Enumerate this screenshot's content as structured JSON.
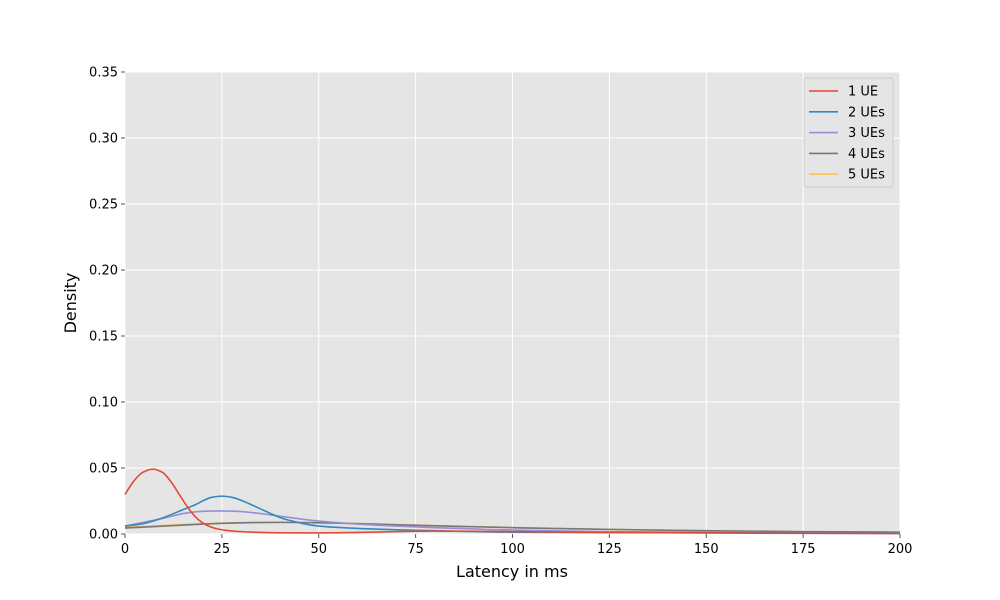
{
  "chart_data": {
    "type": "line",
    "title": "",
    "xlabel": "Latency in ms",
    "ylabel": "Density",
    "xlim": [
      0,
      200
    ],
    "ylim": [
      0,
      0.35
    ],
    "xticks": [
      0,
      25,
      50,
      75,
      100,
      125,
      150,
      175,
      200
    ],
    "xtick_labels": [
      "0",
      "25",
      "50",
      "75",
      "100",
      "125",
      "150",
      "175",
      "200"
    ],
    "yticks": [
      0,
      0.05,
      0.1,
      0.15,
      0.2,
      0.25,
      0.3,
      0.35
    ],
    "ytick_labels": [
      "0.00",
      "0.05",
      "0.10",
      "0.15",
      "0.20",
      "0.25",
      "0.30",
      "0.35"
    ],
    "grid": true,
    "background": "#e5e5e5",
    "legend_position": "top-right",
    "series": [
      {
        "name": "1 UE",
        "color": "#e24a33",
        "x": [
          0,
          2,
          4,
          6,
          7,
          8,
          10,
          12,
          14,
          16,
          18,
          20,
          22,
          24,
          26,
          28,
          30,
          35,
          40,
          50,
          60,
          70,
          80,
          100,
          125,
          150,
          175,
          200
        ],
        "y": [
          0.03,
          0.039,
          0.0455,
          0.0485,
          0.049,
          0.0488,
          0.046,
          0.039,
          0.03,
          0.021,
          0.0135,
          0.0085,
          0.0055,
          0.0038,
          0.0028,
          0.0022,
          0.0018,
          0.0012,
          0.0009,
          0.0008,
          0.0012,
          0.0018,
          0.0022,
          0.0018,
          0.0012,
          0.0008,
          0.0005,
          0.0003
        ]
      },
      {
        "name": "2 UEs",
        "color": "#348abd",
        "x": [
          0,
          5,
          10,
          15,
          18,
          20,
          22,
          24,
          26,
          28,
          30,
          32,
          35,
          40,
          45,
          50,
          60,
          70,
          80,
          90,
          100,
          125,
          150,
          175,
          200
        ],
        "y": [
          0.006,
          0.008,
          0.0125,
          0.0185,
          0.022,
          0.025,
          0.0275,
          0.0285,
          0.0285,
          0.0275,
          0.0255,
          0.023,
          0.019,
          0.0125,
          0.0085,
          0.006,
          0.0042,
          0.0032,
          0.0025,
          0.0018,
          0.0014,
          0.0011,
          0.0009,
          0.0008,
          0.0007
        ]
      },
      {
        "name": "3 UEs",
        "color": "#988ed5",
        "x": [
          0,
          5,
          10,
          15,
          20,
          25,
          30,
          35,
          40,
          45,
          50,
          60,
          70,
          80,
          90,
          100,
          125,
          150,
          175,
          200
        ],
        "y": [
          0.006,
          0.009,
          0.012,
          0.0155,
          0.0172,
          0.0175,
          0.017,
          0.0155,
          0.0135,
          0.0115,
          0.0098,
          0.0075,
          0.006,
          0.0048,
          0.0038,
          0.003,
          0.0018,
          0.0012,
          0.0008,
          0.0006
        ]
      },
      {
        "name": "4 UEs",
        "color": "#777777",
        "x": [
          0,
          10,
          20,
          30,
          40,
          50,
          60,
          70,
          80,
          90,
          100,
          110,
          125,
          150,
          175,
          200
        ],
        "y": [
          0.0045,
          0.006,
          0.0075,
          0.0085,
          0.0088,
          0.0085,
          0.0078,
          0.007,
          0.0062,
          0.0055,
          0.0048,
          0.0042,
          0.0035,
          0.0025,
          0.0018,
          0.0014
        ]
      },
      {
        "name": "5 UEs",
        "color": "#fbc15e",
        "x": [
          0,
          10,
          20,
          30,
          40,
          50,
          60,
          70,
          80,
          90,
          100,
          110,
          125,
          150,
          175,
          200
        ],
        "y": [
          0.005,
          0.0065,
          0.0078,
          0.0086,
          0.0088,
          0.0086,
          0.008,
          0.0072,
          0.0064,
          0.0056,
          0.0049,
          0.0043,
          0.0035,
          0.0024,
          0.0017,
          0.0013
        ]
      }
    ]
  }
}
